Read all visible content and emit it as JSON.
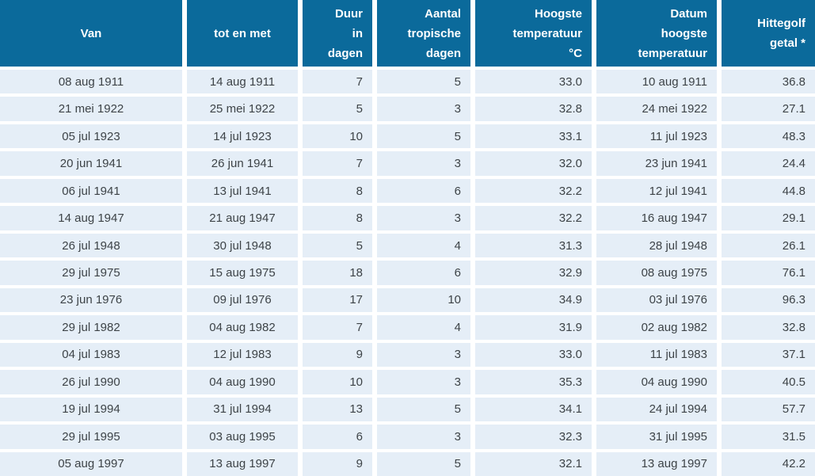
{
  "chart_data": {
    "type": "table",
    "columns": [
      {
        "label": "Van",
        "align": "center"
      },
      {
        "label": "tot en met",
        "align": "center"
      },
      {
        "label": "Duur\nin\ndagen",
        "align": "right"
      },
      {
        "label": "Aantal\ntropische\ndagen",
        "align": "right"
      },
      {
        "label": "Hoogste\ntemperatuur\n°C",
        "align": "right"
      },
      {
        "label": "Datum\nhoogste\ntemperatuur",
        "align": "right"
      },
      {
        "label": "Hittegolf\ngetal *",
        "align": "right"
      }
    ],
    "rows": [
      [
        "08 aug 1911",
        "14 aug 1911",
        "7",
        "5",
        "33.0",
        "10 aug 1911",
        "36.8"
      ],
      [
        "21 mei 1922",
        "25 mei 1922",
        "5",
        "3",
        "32.8",
        "24 mei 1922",
        "27.1"
      ],
      [
        "05 jul 1923",
        "14 jul 1923",
        "10",
        "5",
        "33.1",
        "11 jul 1923",
        "48.3"
      ],
      [
        "20 jun 1941",
        "26 jun 1941",
        "7",
        "3",
        "32.0",
        "23 jun 1941",
        "24.4"
      ],
      [
        "06 jul 1941",
        "13 jul 1941",
        "8",
        "6",
        "32.2",
        "12 jul 1941",
        "44.8"
      ],
      [
        "14 aug 1947",
        "21 aug 1947",
        "8",
        "3",
        "32.2",
        "16 aug 1947",
        "29.1"
      ],
      [
        "26 jul 1948",
        "30 jul 1948",
        "5",
        "4",
        "31.3",
        "28 jul 1948",
        "26.1"
      ],
      [
        "29 jul 1975",
        "15 aug 1975",
        "18",
        "6",
        "32.9",
        "08 aug 1975",
        "76.1"
      ],
      [
        "23 jun 1976",
        "09 jul 1976",
        "17",
        "10",
        "34.9",
        "03 jul 1976",
        "96.3"
      ],
      [
        "29 jul 1982",
        "04 aug 1982",
        "7",
        "4",
        "31.9",
        "02 aug 1982",
        "32.8"
      ],
      [
        "04 jul 1983",
        "12 jul 1983",
        "9",
        "3",
        "33.0",
        "11 jul 1983",
        "37.1"
      ],
      [
        "26 jul 1990",
        "04 aug 1990",
        "10",
        "3",
        "35.3",
        "04 aug 1990",
        "40.5"
      ],
      [
        "19 jul 1994",
        "31 jul 1994",
        "13",
        "5",
        "34.1",
        "24 jul 1994",
        "57.7"
      ],
      [
        "29 jul 1995",
        "03 aug 1995",
        "6",
        "3",
        "32.3",
        "31 jul 1995",
        "31.5"
      ],
      [
        "05 aug 1997",
        "13 aug 1997",
        "9",
        "5",
        "32.1",
        "13 aug 1997",
        "42.2"
      ]
    ]
  },
  "colors": {
    "header_bg": "#0b6a9b",
    "header_text": "#ffffff",
    "row_bg": "#e5eef7",
    "row_text": "#3d4347",
    "gap": "#ffffff"
  }
}
